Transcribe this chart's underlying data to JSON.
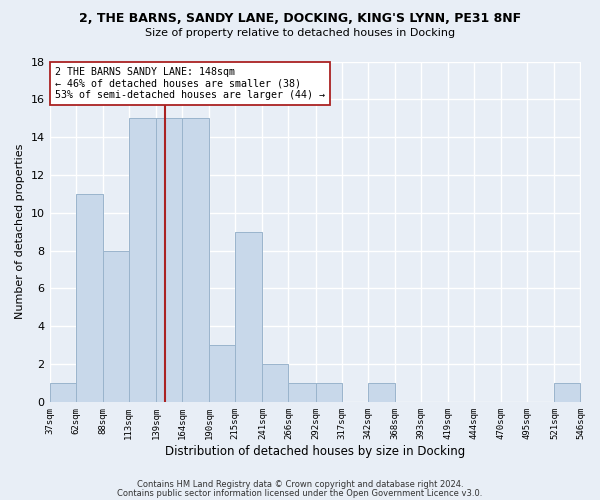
{
  "title1": "2, THE BARNS, SANDY LANE, DOCKING, KING'S LYNN, PE31 8NF",
  "title2": "Size of property relative to detached houses in Docking",
  "xlabel": "Distribution of detached houses by size in Docking",
  "ylabel": "Number of detached properties",
  "bar_color": "#c8d8ea",
  "bar_edge_color": "#9ab4cc",
  "bin_edges": [
    37,
    62,
    88,
    113,
    139,
    164,
    190,
    215,
    241,
    266,
    292,
    317,
    342,
    368,
    393,
    419,
    444,
    470,
    495,
    521,
    546
  ],
  "bar_heights": [
    1,
    11,
    8,
    15,
    15,
    15,
    3,
    9,
    2,
    1,
    1,
    0,
    1,
    0,
    0,
    0,
    0,
    0,
    0,
    1
  ],
  "tick_labels": [
    "37sqm",
    "62sqm",
    "88sqm",
    "113sqm",
    "139sqm",
    "164sqm",
    "190sqm",
    "215sqm",
    "241sqm",
    "266sqm",
    "292sqm",
    "317sqm",
    "342sqm",
    "368sqm",
    "393sqm",
    "419sqm",
    "444sqm",
    "470sqm",
    "495sqm",
    "521sqm",
    "546sqm"
  ],
  "property_size": 148,
  "vline_color": "#aa2222",
  "annotation_line1": "2 THE BARNS SANDY LANE: 148sqm",
  "annotation_line2": "← 46% of detached houses are smaller (38)",
  "annotation_line3": "53% of semi-detached houses are larger (44) →",
  "annotation_box_color": "#ffffff",
  "annotation_box_edge_color": "#aa2222",
  "footer1": "Contains HM Land Registry data © Crown copyright and database right 2024.",
  "footer2": "Contains public sector information licensed under the Open Government Licence v3.0.",
  "bg_color": "#e8eef6",
  "grid_color": "#ffffff",
  "ylim": [
    0,
    18
  ],
  "yticks": [
    0,
    2,
    4,
    6,
    8,
    10,
    12,
    14,
    16,
    18
  ]
}
